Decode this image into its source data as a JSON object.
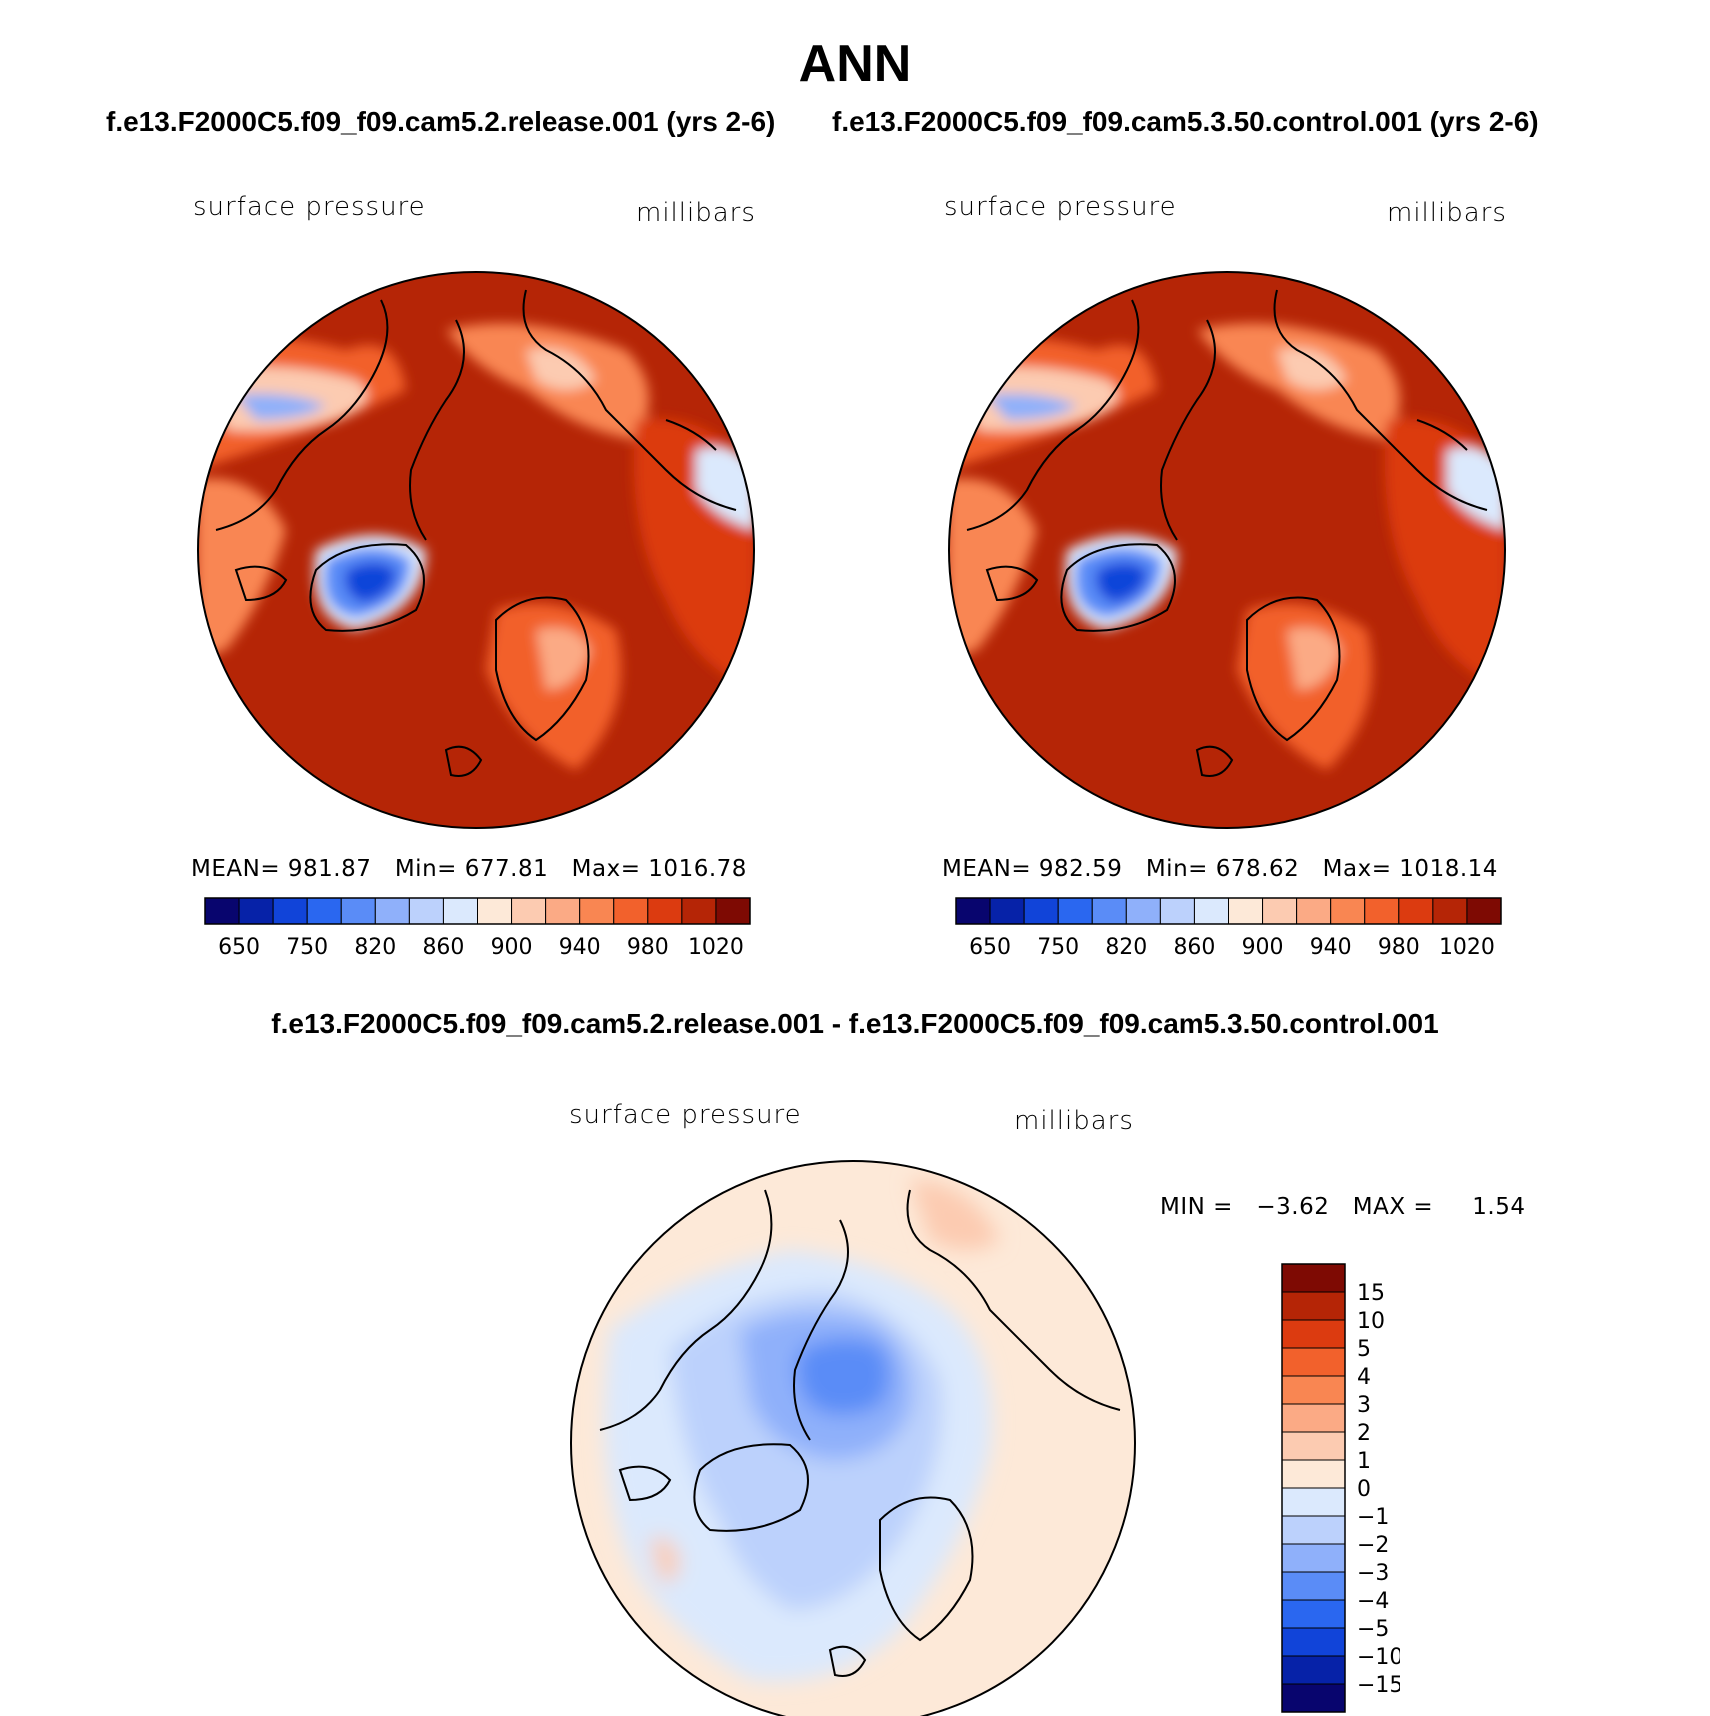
{
  "chart_data": [
    {
      "type": "heatmap",
      "title": "ANN",
      "panel_title": "f.e13.F2000C5.f09_f09.cam5.2.release.001 (yrs 2-6)",
      "variable": "surface pressure",
      "units": "millibars",
      "projection": "north polar stereographic",
      "stats": {
        "mean_label": "MEAN=",
        "mean": "981.87",
        "min_label": "Min=",
        "min": "677.81",
        "max_label": "Max=",
        "max": "1016.78"
      },
      "colorbar": {
        "orientation": "horizontal",
        "tick_labels": [
          "650",
          "750",
          "820",
          "860",
          "900",
          "940",
          "980",
          "1020"
        ],
        "colors": [
          "#08056e",
          "#0622a8",
          "#1144d9",
          "#2a67f0",
          "#5a8cf7",
          "#8fb0fa",
          "#bcd1fc",
          "#dbe9fd",
          "#fde9d8",
          "#fccbb1",
          "#fbaa85",
          "#f98652",
          "#f2612c",
          "#dc3b10",
          "#b52506",
          "#7e0a03"
        ]
      }
    },
    {
      "type": "heatmap",
      "panel_title": "f.e13.F2000C5.f09_f09.cam5.3.50.control.001 (yrs 2-6)",
      "variable": "surface pressure",
      "units": "millibars",
      "projection": "north polar stereographic",
      "stats": {
        "mean_label": "MEAN=",
        "mean": "982.59",
        "min_label": "Min=",
        "min": "678.62",
        "max_label": "Max=",
        "max": "1018.14"
      },
      "colorbar": {
        "orientation": "horizontal",
        "tick_labels": [
          "650",
          "750",
          "820",
          "860",
          "900",
          "940",
          "980",
          "1020"
        ],
        "colors": [
          "#08056e",
          "#0622a8",
          "#1144d9",
          "#2a67f0",
          "#5a8cf7",
          "#8fb0fa",
          "#bcd1fc",
          "#dbe9fd",
          "#fde9d8",
          "#fccbb1",
          "#fbaa85",
          "#f98652",
          "#f2612c",
          "#dc3b10",
          "#b52506",
          "#7e0a03"
        ]
      }
    },
    {
      "type": "heatmap",
      "panel_title": "f.e13.F2000C5.f09_f09.cam5.2.release.001 - f.e13.F2000C5.f09_f09.cam5.3.50.control.001",
      "variable": "surface pressure",
      "units": "millibars",
      "projection": "north polar stereographic",
      "stats": {
        "min_label": "MIN =",
        "min": "−3.62",
        "max_label": "MAX =",
        "max": "1.54"
      },
      "colorbar": {
        "orientation": "vertical",
        "tick_labels": [
          "15",
          "10",
          "5",
          "4",
          "3",
          "2",
          "1",
          "0",
          "−1",
          "−2",
          "−3",
          "−4",
          "−5",
          "−10",
          "−15"
        ],
        "colors": [
          "#7e0a03",
          "#b52506",
          "#dc3b10",
          "#f2612c",
          "#f98652",
          "#fbaa85",
          "#fccbb1",
          "#fde9d8",
          "#dbe9fd",
          "#bcd1fc",
          "#8fb0fa",
          "#5a8cf7",
          "#2a67f0",
          "#1144d9",
          "#0622a8",
          "#08056e"
        ]
      }
    }
  ]
}
